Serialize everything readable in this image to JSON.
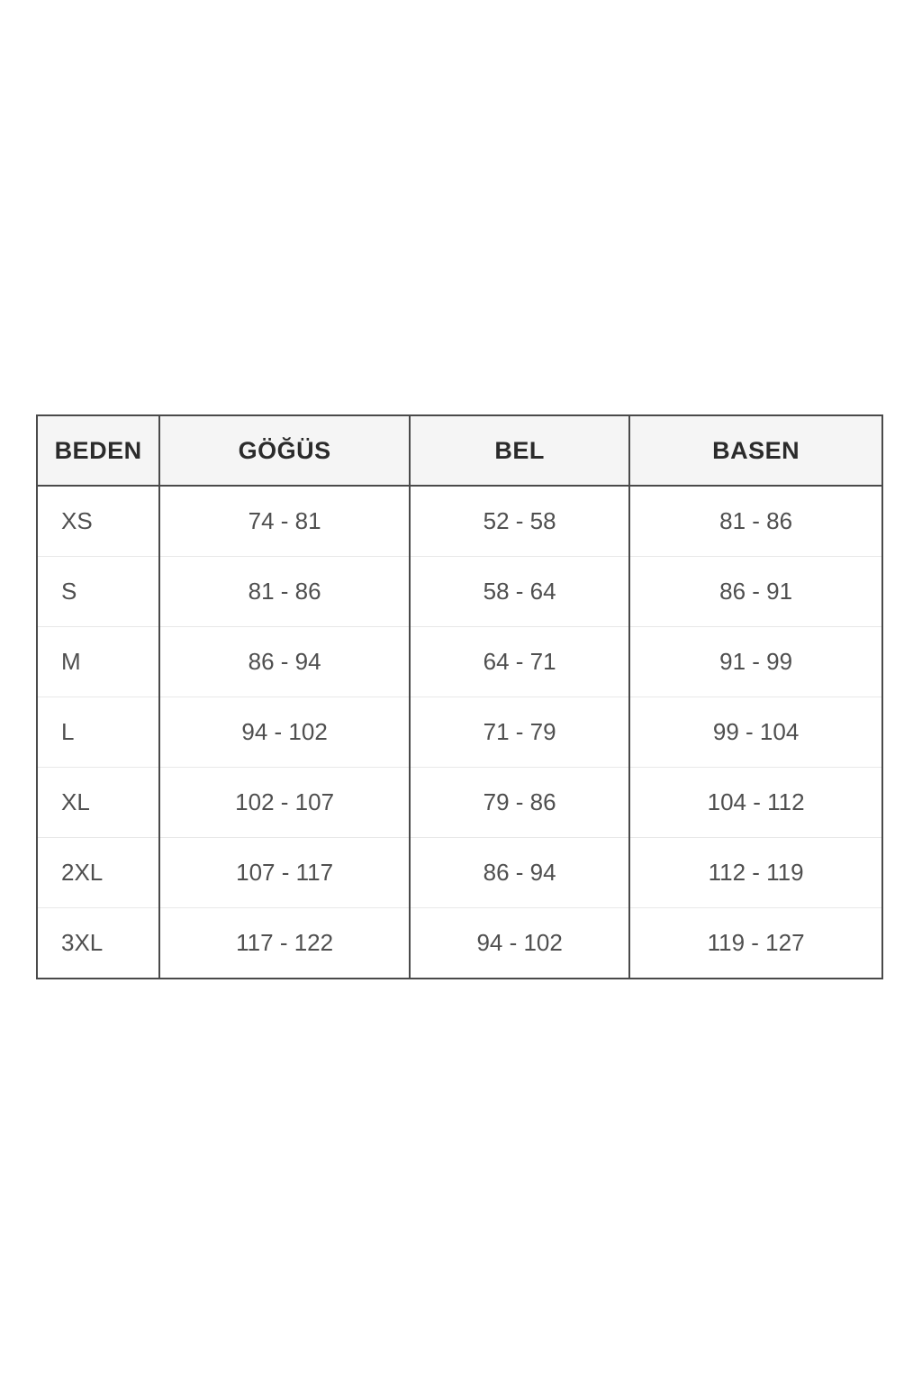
{
  "colors": {
    "border_dark": "#4a4a4a",
    "row_divider": "#e8e8e8",
    "header_bg": "#f5f5f5",
    "header_text": "#2b2b2b",
    "body_text": "#4f4f4f",
    "page_bg": "#ffffff"
  },
  "chart_data": {
    "type": "table",
    "title": "",
    "columns": [
      "BEDEN",
      "GÖĞÜS",
      "BEL",
      "BASEN"
    ],
    "rows": [
      [
        "XS",
        "74 - 81",
        "52 - 58",
        "81 - 86"
      ],
      [
        "S",
        "81 - 86",
        "58 - 64",
        "86 - 91"
      ],
      [
        "M",
        "86 - 94",
        "64 - 71",
        "91 - 99"
      ],
      [
        "L",
        "94 - 102",
        "71 - 79",
        "99 - 104"
      ],
      [
        "XL",
        "102 - 107",
        "79 - 86",
        "104 - 112"
      ],
      [
        "2XL",
        "107 - 117",
        "86 - 94",
        "112 - 119"
      ],
      [
        "3XL",
        "117 - 122",
        "94 - 102",
        "119 - 127"
      ]
    ]
  }
}
